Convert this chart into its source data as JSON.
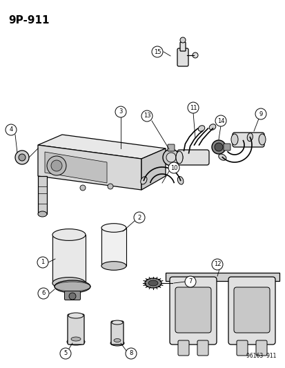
{
  "title": "9P-911",
  "footer": "96163  911",
  "bg_color": "#ffffff",
  "line_color": "#000000",
  "figsize": [
    4.14,
    5.33
  ],
  "dpi": 100
}
